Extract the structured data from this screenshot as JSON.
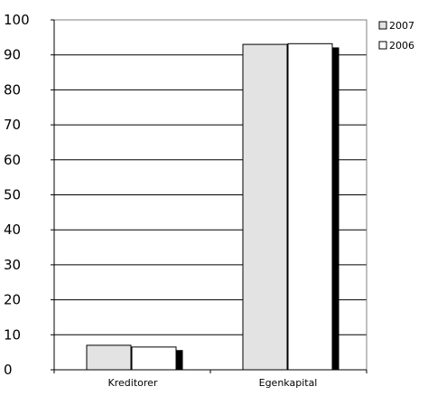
{
  "chart_data": {
    "type": "bar",
    "categories": [
      "Kreditorer",
      "Egenkapital"
    ],
    "series": [
      {
        "name": "2007",
        "values": [
          7,
          93
        ],
        "color": "#e3e3e3"
      },
      {
        "name": "2006",
        "values": [
          6.5,
          93.2
        ],
        "color": "#ffffff"
      },
      {
        "values": [
          5.5,
          92
        ],
        "color": "#000000"
      }
    ],
    "ylim": [
      0,
      100
    ],
    "yticks": [
      "0",
      "10",
      "20",
      "30",
      "40",
      "50",
      "60",
      "70",
      "80",
      "90",
      "100"
    ],
    "grid": true,
    "legend": "top-right"
  }
}
